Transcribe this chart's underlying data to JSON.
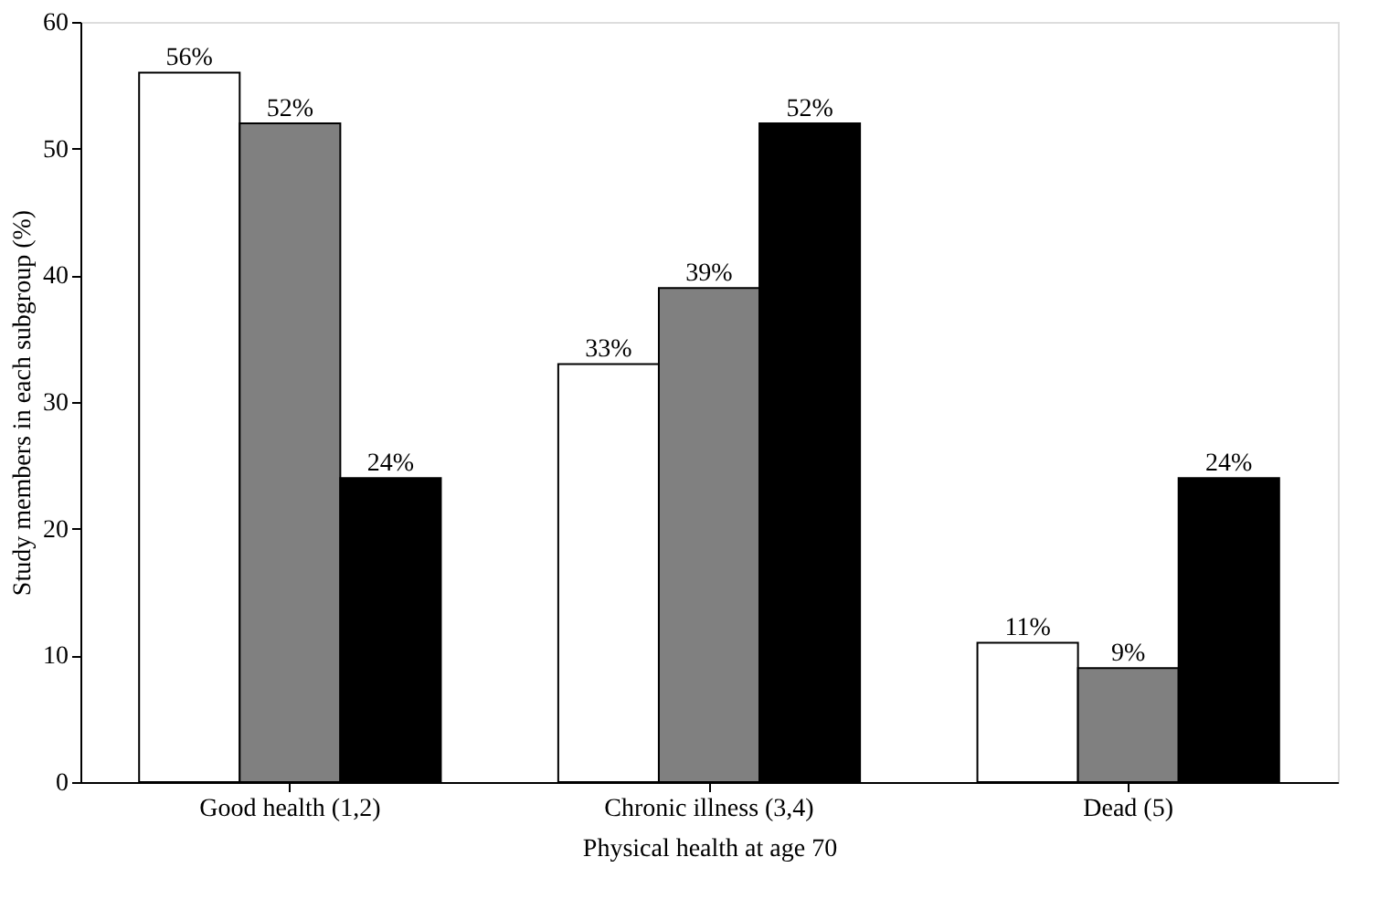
{
  "chart_data": {
    "type": "bar",
    "xlabel": "Physical health at age 70",
    "ylabel": "Study members in each subgroup (%)",
    "categories": [
      "Good health (1,2)",
      "Chronic illness (3,4)",
      "Dead (5)"
    ],
    "series": [
      {
        "color": "#ffffff",
        "values": [
          56,
          33,
          11
        ],
        "value_labels": [
          "56%",
          "33%",
          "11%"
        ]
      },
      {
        "color": "#808080",
        "values": [
          52,
          39,
          9
        ],
        "value_labels": [
          "52%",
          "39%",
          "9%"
        ]
      },
      {
        "color": "#000000",
        "values": [
          24,
          52,
          24
        ],
        "value_labels": [
          "24%",
          "52%",
          "24%"
        ]
      }
    ],
    "ylim": [
      0,
      60
    ],
    "yticks": [
      0,
      10,
      20,
      30,
      40,
      50,
      60
    ],
    "grid": false,
    "legend": false
  }
}
